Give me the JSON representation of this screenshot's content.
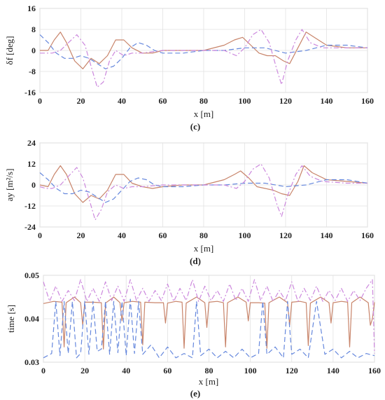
{
  "chart_data": [
    {
      "type": "line",
      "panel_label": "(c)",
      "xlabel": "x [m]",
      "ylabel": "δf [deg]",
      "xlim": [
        0,
        160
      ],
      "ylim": [
        -16,
        16
      ],
      "xticks": [
        0,
        20,
        40,
        60,
        80,
        100,
        120,
        140,
        160
      ],
      "yticks": [
        -16,
        -8,
        0,
        8,
        16
      ],
      "grid": true,
      "series": [
        {
          "color": "#c8846a",
          "style": "solid",
          "x": [
            0,
            4,
            7,
            10,
            13,
            17,
            21,
            25,
            29,
            33,
            37,
            41,
            45,
            50,
            55,
            60,
            70,
            80,
            90,
            95,
            99,
            103,
            107,
            111,
            115,
            119,
            122,
            126,
            130,
            134,
            140,
            150,
            160
          ],
          "y": [
            0,
            0,
            4,
            7,
            3,
            -4,
            -7,
            -3,
            -5,
            -2,
            4,
            4,
            1,
            -1,
            -1,
            0,
            0,
            0,
            2,
            4,
            5,
            2,
            -1,
            -2,
            -2,
            -4,
            -5,
            1,
            7,
            5,
            2,
            1,
            1
          ]
        },
        {
          "color": "#6688dd",
          "style": "dashed",
          "x": [
            0,
            4,
            8,
            12,
            16,
            20,
            24,
            28,
            32,
            36,
            40,
            44,
            48,
            52,
            56,
            60,
            70,
            80,
            90,
            100,
            110,
            120,
            130,
            140,
            150,
            160
          ],
          "y": [
            6,
            3,
            -1,
            -3,
            -3,
            -2,
            -3,
            -5,
            -7,
            -6,
            -3,
            1,
            3,
            2,
            0,
            -1,
            -1,
            0,
            0,
            1,
            1,
            -1,
            0,
            2,
            2,
            1
          ]
        },
        {
          "color": "#cc88dd",
          "style": "dashdot",
          "x": [
            0,
            3,
            6,
            10,
            14,
            18,
            22,
            25,
            28,
            31,
            34,
            37,
            41,
            45,
            50,
            60,
            70,
            80,
            90,
            96,
            100,
            104,
            108,
            112,
            116,
            118,
            121,
            125,
            128,
            132,
            138,
            150,
            160
          ],
          "y": [
            -1,
            -1,
            -1,
            0,
            3,
            6,
            2,
            -6,
            -14,
            -12,
            -4,
            0,
            -2,
            -1,
            -1,
            0,
            0,
            0,
            0,
            -2,
            1,
            6,
            8,
            3,
            -8,
            -13,
            -4,
            4,
            8,
            3,
            1,
            1,
            1
          ]
        }
      ]
    },
    {
      "type": "line",
      "panel_label": "(d)",
      "xlabel": "x [m]",
      "ylabel": "ay [m²/s]",
      "xlim": [
        0,
        160
      ],
      "ylim": [
        -24,
        24
      ],
      "xticks": [
        0,
        20,
        40,
        60,
        80,
        100,
        120,
        140,
        160
      ],
      "yticks": [
        -24,
        -12,
        0,
        12,
        24
      ],
      "grid": true,
      "series": [
        {
          "color": "#c8846a",
          "style": "solid",
          "x": [
            0,
            4,
            7,
            10,
            13,
            17,
            21,
            25,
            29,
            33,
            37,
            41,
            45,
            50,
            55,
            60,
            70,
            80,
            90,
            95,
            98,
            102,
            106,
            110,
            114,
            118,
            122,
            126,
            129,
            133,
            140,
            150,
            160
          ],
          "y": [
            0,
            -1,
            6,
            11,
            6,
            -5,
            -10,
            -6,
            -8,
            -3,
            6,
            6,
            1,
            -1,
            -2,
            -1,
            0,
            0,
            3,
            6,
            8,
            4,
            -1,
            -2,
            -3,
            -5,
            -6,
            2,
            11,
            7,
            3,
            2,
            1
          ]
        },
        {
          "color": "#6688dd",
          "style": "dashed",
          "x": [
            0,
            4,
            8,
            12,
            16,
            20,
            24,
            28,
            32,
            36,
            40,
            44,
            48,
            52,
            56,
            60,
            70,
            80,
            90,
            100,
            110,
            120,
            130,
            140,
            150,
            160
          ],
          "y": [
            7,
            3,
            -2,
            -5,
            -5,
            -3,
            -4,
            -7,
            -10,
            -8,
            -3,
            2,
            4,
            3,
            0,
            -1,
            -1,
            0,
            0,
            1,
            1,
            -1,
            0,
            3,
            3,
            1
          ]
        },
        {
          "color": "#cc88dd",
          "style": "dashdot",
          "x": [
            0,
            3,
            6,
            10,
            14,
            18,
            21,
            24,
            27,
            30,
            33,
            37,
            41,
            45,
            50,
            60,
            70,
            80,
            90,
            96,
            100,
            104,
            108,
            112,
            116,
            118,
            121,
            125,
            128,
            132,
            138,
            150,
            160
          ],
          "y": [
            -1,
            -2,
            -2,
            0,
            5,
            10,
            4,
            -8,
            -20,
            -14,
            -4,
            0,
            -2,
            -1,
            -1,
            0,
            0,
            0,
            0,
            -2,
            2,
            9,
            12,
            4,
            -12,
            -18,
            -6,
            6,
            11,
            5,
            2,
            1,
            1
          ]
        }
      ]
    },
    {
      "type": "line",
      "panel_label": "(e)",
      "xlabel": "x [m]",
      "ylabel": "time [s]",
      "xlim": [
        0,
        160
      ],
      "ylim": [
        0.03,
        0.05
      ],
      "xticks": [
        0,
        20,
        40,
        60,
        80,
        100,
        120,
        140,
        160
      ],
      "yticks": [
        0.03,
        0.04,
        0.05
      ],
      "grid": true,
      "series": [
        {
          "color": "#c8846a",
          "style": "solid",
          "x": [
            0,
            5,
            9,
            10,
            11,
            15,
            18,
            19,
            20,
            24,
            28,
            29,
            30,
            34,
            37,
            38,
            39,
            43,
            47,
            48,
            49,
            54,
            58,
            59,
            60,
            64,
            67,
            68,
            69,
            74,
            78,
            79,
            80,
            84,
            87,
            88,
            89,
            94,
            98,
            99,
            100,
            104,
            107,
            108,
            109,
            114,
            118,
            119,
            120,
            124,
            127,
            128,
            129,
            134,
            138,
            139,
            140,
            144,
            147,
            148,
            149,
            153,
            157,
            158,
            159,
            160
          ],
          "y": [
            0.0435,
            0.044,
            0.0438,
            0.0335,
            0.0437,
            0.045,
            0.0437,
            0.0385,
            0.0438,
            0.0438,
            0.0437,
            0.033,
            0.0436,
            0.045,
            0.0437,
            0.0395,
            0.0437,
            0.044,
            0.0438,
            0.034,
            0.0438,
            0.0437,
            0.0437,
            0.039,
            0.0436,
            0.044,
            0.0438,
            0.0332,
            0.0436,
            0.045,
            0.0437,
            0.038,
            0.0438,
            0.044,
            0.0437,
            0.0335,
            0.0437,
            0.045,
            0.0438,
            0.0395,
            0.0437,
            0.0437,
            0.0436,
            0.0332,
            0.0437,
            0.045,
            0.0437,
            0.0385,
            0.0438,
            0.044,
            0.0437,
            0.0338,
            0.0436,
            0.045,
            0.0437,
            0.039,
            0.0437,
            0.044,
            0.0438,
            0.0335,
            0.0437,
            0.045,
            0.0437,
            0.0385,
            0.04,
            0.0438
          ]
        },
        {
          "color": "#6688dd",
          "style": "dashed",
          "x": [
            0,
            4,
            6,
            8,
            10,
            12,
            14,
            16,
            18,
            20,
            22,
            24,
            26,
            28,
            30,
            32,
            34,
            36,
            38,
            40,
            42,
            44,
            46,
            48,
            52,
            56,
            60,
            64,
            68,
            72,
            74,
            76,
            80,
            84,
            88,
            92,
            96,
            100,
            104,
            106,
            108,
            112,
            116,
            118,
            120,
            124,
            128,
            132,
            136,
            140,
            144,
            148,
            152,
            156,
            160
          ],
          "y": [
            0.031,
            0.032,
            0.044,
            0.0315,
            0.044,
            0.032,
            0.044,
            0.031,
            0.032,
            0.044,
            0.0318,
            0.044,
            0.0325,
            0.033,
            0.044,
            0.0318,
            0.044,
            0.0322,
            0.044,
            0.0315,
            0.0445,
            0.032,
            0.044,
            0.0318,
            0.034,
            0.031,
            0.0335,
            0.031,
            0.032,
            0.031,
            0.044,
            0.0315,
            0.033,
            0.031,
            0.0325,
            0.031,
            0.033,
            0.031,
            0.032,
            0.044,
            0.0318,
            0.0335,
            0.031,
            0.044,
            0.0318,
            0.033,
            0.031,
            0.044,
            0.0318,
            0.033,
            0.031,
            0.0325,
            0.031,
            0.032,
            0.0315
          ]
        },
        {
          "color": "#cc88dd",
          "style": "dashdot",
          "x": [
            0,
            3,
            6,
            9,
            12,
            15,
            18,
            21,
            24,
            27,
            30,
            33,
            36,
            39,
            42,
            45,
            48,
            51,
            54,
            57,
            60,
            63,
            66,
            69,
            72,
            75,
            78,
            81,
            84,
            87,
            90,
            93,
            96,
            99,
            102,
            105,
            108,
            111,
            114,
            117,
            120,
            123,
            126,
            129,
            132,
            135,
            138,
            141,
            144,
            147,
            150,
            153,
            156,
            159,
            160
          ],
          "y": [
            0.0485,
            0.044,
            0.0475,
            0.044,
            0.0465,
            0.0442,
            0.049,
            0.044,
            0.047,
            0.044,
            0.0485,
            0.0442,
            0.0475,
            0.044,
            0.049,
            0.0442,
            0.047,
            0.044,
            0.0465,
            0.0442,
            0.048,
            0.044,
            0.047,
            0.0442,
            0.049,
            0.044,
            0.0475,
            0.0442,
            0.0465,
            0.044,
            0.048,
            0.0442,
            0.047,
            0.044,
            0.049,
            0.0442,
            0.0475,
            0.044,
            0.0465,
            0.0442,
            0.0485,
            0.044,
            0.047,
            0.0442,
            0.0475,
            0.044,
            0.0465,
            0.0442,
            0.047,
            0.044,
            0.0465,
            0.0442,
            0.047,
            0.049,
            0.032
          ]
        }
      ]
    }
  ]
}
